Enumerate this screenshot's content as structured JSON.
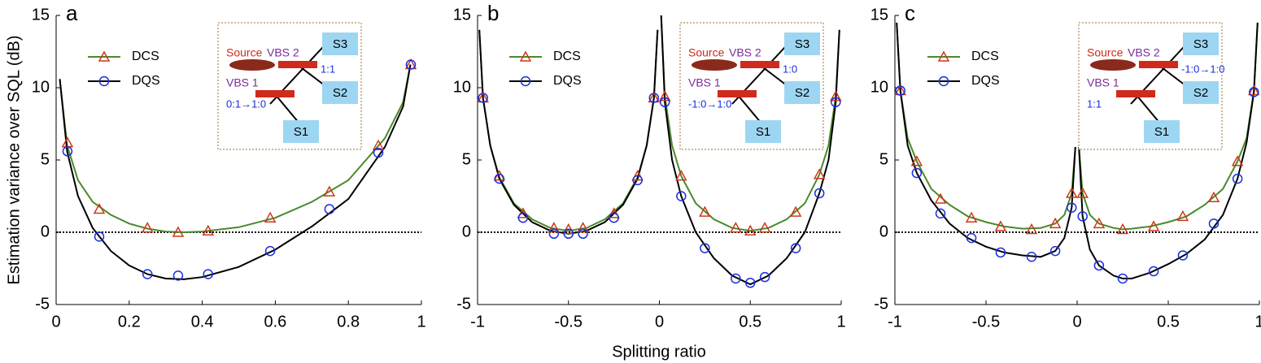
{
  "chart_data": [
    {
      "type": "line",
      "label": "a",
      "ylabel": "Estimation variance over SQL (dB)",
      "xlim": [
        0,
        1
      ],
      "ylim": [
        -5,
        15
      ],
      "xticks": [
        0,
        0.2,
        0.4,
        0.6,
        0.8,
        1
      ],
      "yticks": [
        -5,
        0,
        5,
        10,
        15
      ],
      "hline": 0,
      "series": [
        {
          "name": "DCS",
          "color": "#4a8a2a",
          "marker_color": "#d0361a",
          "marker": "triangle",
          "x": [
            0.031,
            0.118,
            0.25,
            0.334,
            0.416,
            0.586,
            0.748,
            0.882,
            0.971
          ],
          "values": [
            6.2,
            1.6,
            0.3,
            0,
            0.1,
            1.0,
            2.8,
            6.0,
            11.6
          ],
          "curve_x": [
            0.01,
            0.03,
            0.06,
            0.1,
            0.15,
            0.2,
            0.25,
            0.3,
            0.35,
            0.4,
            0.5,
            0.6,
            0.7,
            0.8,
            0.9,
            0.95,
            0.97
          ],
          "curve_values": [
            10.6,
            6.0,
            3.6,
            2.1,
            1.2,
            0.6,
            0.25,
            0.05,
            0,
            0.05,
            0.35,
            1.0,
            2.1,
            3.6,
            6.5,
            9.0,
            11.6
          ]
        },
        {
          "name": "DQS",
          "color": "#000000",
          "marker_color": "#1a2ee0",
          "marker": "circle",
          "x": [
            0.031,
            0.118,
            0.25,
            0.334,
            0.416,
            0.586,
            0.748,
            0.882,
            0.971
          ],
          "values": [
            5.6,
            -0.3,
            -2.9,
            -3.0,
            -2.9,
            -1.3,
            1.6,
            5.5,
            11.6
          ],
          "curve_x": [
            0.01,
            0.03,
            0.06,
            0.1,
            0.15,
            0.2,
            0.25,
            0.3,
            0.35,
            0.4,
            0.5,
            0.6,
            0.7,
            0.8,
            0.9,
            0.95,
            0.97
          ],
          "curve_values": [
            10.6,
            5.6,
            2.5,
            0.3,
            -1.3,
            -2.3,
            -2.9,
            -3.2,
            -3.25,
            -3.1,
            -2.4,
            -1.2,
            0.4,
            2.3,
            5.9,
            8.7,
            11.6
          ]
        }
      ],
      "inset": {
        "source": "Source",
        "vbs2": "VBS 2",
        "vbs1": "VBS 1",
        "s1": "S1",
        "s2": "S2",
        "s3": "S3",
        "ratio2": "1:1",
        "ratio1": "0:1→1:0"
      }
    },
    {
      "type": "line",
      "label": "b",
      "xlabel": "Splitting ratio",
      "xlim": [
        -1,
        1
      ],
      "ylim": [
        -5,
        15
      ],
      "xticks": [
        -1,
        -0.5,
        0,
        0.5,
        1
      ],
      "yticks": [
        -5,
        0,
        5,
        10,
        15
      ],
      "hline": 0,
      "series": [
        {
          "name": "DCS",
          "color": "#4a8a2a",
          "marker_color": "#d0361a",
          "marker": "triangle",
          "x": [
            -0.97,
            -0.88,
            -0.75,
            -0.58,
            -0.5,
            -0.42,
            -0.25,
            -0.12,
            -0.03,
            0.03,
            0.12,
            0.25,
            0.42,
            0.5,
            0.58,
            0.75,
            0.88,
            0.97
          ],
          "values": [
            9.3,
            3.9,
            1.3,
            0.3,
            0.2,
            0.3,
            1.3,
            3.9,
            9.3,
            9.4,
            3.9,
            1.4,
            0.3,
            0.1,
            0.3,
            1.4,
            4.0,
            9.4
          ],
          "curve_x": [
            -0.99,
            -0.97,
            -0.93,
            -0.88,
            -0.8,
            -0.7,
            -0.6,
            -0.5,
            -0.4,
            -0.3,
            -0.2,
            -0.12,
            -0.07,
            -0.03,
            -0.01,
            0,
            0.01,
            0.03,
            0.07,
            0.12,
            0.2,
            0.3,
            0.4,
            0.5,
            0.6,
            0.7,
            0.8,
            0.88,
            0.93,
            0.97,
            0.99
          ],
          "curve_values": [
            14,
            9.3,
            6,
            3.8,
            2.0,
            0.9,
            0.3,
            0.1,
            0.3,
            0.9,
            2.0,
            3.8,
            6,
            9.3,
            14,
            null,
            15,
            9.4,
            6,
            3.9,
            2.0,
            0.9,
            0.3,
            0.1,
            0.3,
            0.9,
            2.0,
            4.0,
            6,
            9.4,
            14
          ]
        },
        {
          "name": "DQS",
          "color": "#000000",
          "marker_color": "#1a2ee0",
          "marker": "circle",
          "x": [
            -0.97,
            -0.88,
            -0.75,
            -0.58,
            -0.5,
            -0.42,
            -0.25,
            -0.12,
            -0.03,
            0.03,
            0.12,
            0.25,
            0.42,
            0.5,
            0.58,
            0.75,
            0.88,
            0.97
          ],
          "values": [
            9.3,
            3.7,
            1.0,
            -0.1,
            -0.1,
            -0.1,
            1.0,
            3.6,
            9.3,
            9.0,
            2.5,
            -1.1,
            -3.2,
            -3.5,
            -3.1,
            -1.1,
            2.7,
            9.0
          ],
          "curve_x": [
            -0.99,
            -0.97,
            -0.93,
            -0.88,
            -0.8,
            -0.7,
            -0.6,
            -0.5,
            -0.4,
            -0.3,
            -0.2,
            -0.12,
            -0.07,
            -0.03,
            -0.01,
            0,
            0.01,
            0.03,
            0.07,
            0.12,
            0.2,
            0.3,
            0.4,
            0.5,
            0.6,
            0.7,
            0.8,
            0.88,
            0.93,
            0.97,
            0.99
          ],
          "curve_values": [
            14,
            9.3,
            6,
            3.7,
            1.9,
            0.7,
            0.1,
            -0.1,
            0.1,
            0.7,
            1.9,
            3.7,
            6,
            9.3,
            14,
            null,
            15,
            9.0,
            5,
            2.5,
            0.0,
            -1.8,
            -3.0,
            -3.6,
            -3.0,
            -1.8,
            0.0,
            2.7,
            5,
            9.0,
            14
          ]
        }
      ],
      "inset": {
        "source": "Source",
        "vbs2": "VBS 2",
        "vbs1": "VBS 1",
        "s1": "S1",
        "s2": "S2",
        "s3": "S3",
        "ratio2": "1:0",
        "ratio1": "-1:0→1:0"
      }
    },
    {
      "type": "line",
      "label": "c",
      "xlim": [
        -1,
        1
      ],
      "ylim": [
        -5,
        15
      ],
      "xticks": [
        -1,
        -0.5,
        0,
        0.5,
        1
      ],
      "yticks": [
        -5,
        0,
        5,
        10,
        15
      ],
      "hline": 0,
      "series": [
        {
          "name": "DCS",
          "color": "#4a8a2a",
          "marker_color": "#d0361a",
          "marker": "triangle",
          "x": [
            -0.97,
            -0.88,
            -0.75,
            -0.58,
            -0.42,
            -0.25,
            -0.12,
            -0.03,
            0.03,
            0.12,
            0.25,
            0.42,
            0.58,
            0.75,
            0.88,
            0.97
          ],
          "values": [
            9.8,
            4.9,
            2.3,
            1.0,
            0.4,
            0.2,
            0.6,
            2.7,
            2.7,
            0.6,
            0.2,
            0.4,
            1.1,
            2.4,
            4.9,
            9.8
          ],
          "curve_x": [
            -0.99,
            -0.97,
            -0.93,
            -0.88,
            -0.8,
            -0.7,
            -0.6,
            -0.5,
            -0.4,
            -0.3,
            -0.2,
            -0.12,
            -0.07,
            -0.03,
            -0.01,
            0,
            0.01,
            0.03,
            0.07,
            0.12,
            0.2,
            0.25,
            0.3,
            0.4,
            0.5,
            0.6,
            0.7,
            0.8,
            0.88,
            0.93,
            0.97,
            0.99
          ],
          "curve_values": [
            14.5,
            9.8,
            6.5,
            4.9,
            3.0,
            1.9,
            1.1,
            0.7,
            0.4,
            0.25,
            0.3,
            0.6,
            1.2,
            2.7,
            5.9,
            null,
            5.9,
            2.7,
            1.2,
            0.6,
            0.3,
            0.2,
            0.25,
            0.4,
            0.7,
            1.1,
            1.9,
            3.0,
            4.9,
            6.5,
            9.8,
            14.5
          ]
        },
        {
          "name": "DQS",
          "color": "#000000",
          "marker_color": "#1a2ee0",
          "marker": "circle",
          "x": [
            -0.97,
            -0.88,
            -0.75,
            -0.58,
            -0.42,
            -0.25,
            -0.12,
            -0.03,
            0.03,
            0.12,
            0.25,
            0.42,
            0.58,
            0.75,
            0.88,
            0.97
          ],
          "values": [
            9.8,
            4.1,
            1.3,
            -0.4,
            -1.4,
            -1.7,
            -1.3,
            1.7,
            1.1,
            -2.3,
            -3.2,
            -2.7,
            -1.6,
            0.6,
            3.7,
            9.7
          ],
          "curve_x": [
            -0.99,
            -0.97,
            -0.93,
            -0.88,
            -0.8,
            -0.7,
            -0.6,
            -0.5,
            -0.4,
            -0.3,
            -0.2,
            -0.12,
            -0.07,
            -0.03,
            -0.01,
            0,
            0.01,
            0.03,
            0.07,
            0.12,
            0.2,
            0.25,
            0.3,
            0.4,
            0.5,
            0.6,
            0.7,
            0.8,
            0.88,
            0.93,
            0.97,
            0.99
          ],
          "curve_values": [
            14.5,
            9.8,
            6,
            4.1,
            2.2,
            0.6,
            -0.4,
            -1.0,
            -1.4,
            -1.6,
            -1.7,
            -1.3,
            -0.4,
            1.7,
            5.9,
            null,
            5.9,
            1.1,
            -1.2,
            -2.3,
            -3.0,
            -3.2,
            -3.2,
            -2.8,
            -2.2,
            -1.5,
            -0.5,
            1.2,
            3.7,
            6.2,
            9.7,
            14.5
          ]
        }
      ],
      "inset": {
        "source": "Source",
        "vbs2": "VBS 2",
        "vbs1": "VBS 1",
        "s1": "S1",
        "s2": "S2",
        "s3": "S3",
        "ratio2": "-1:0→1:0",
        "ratio1": "1:1"
      }
    }
  ]
}
